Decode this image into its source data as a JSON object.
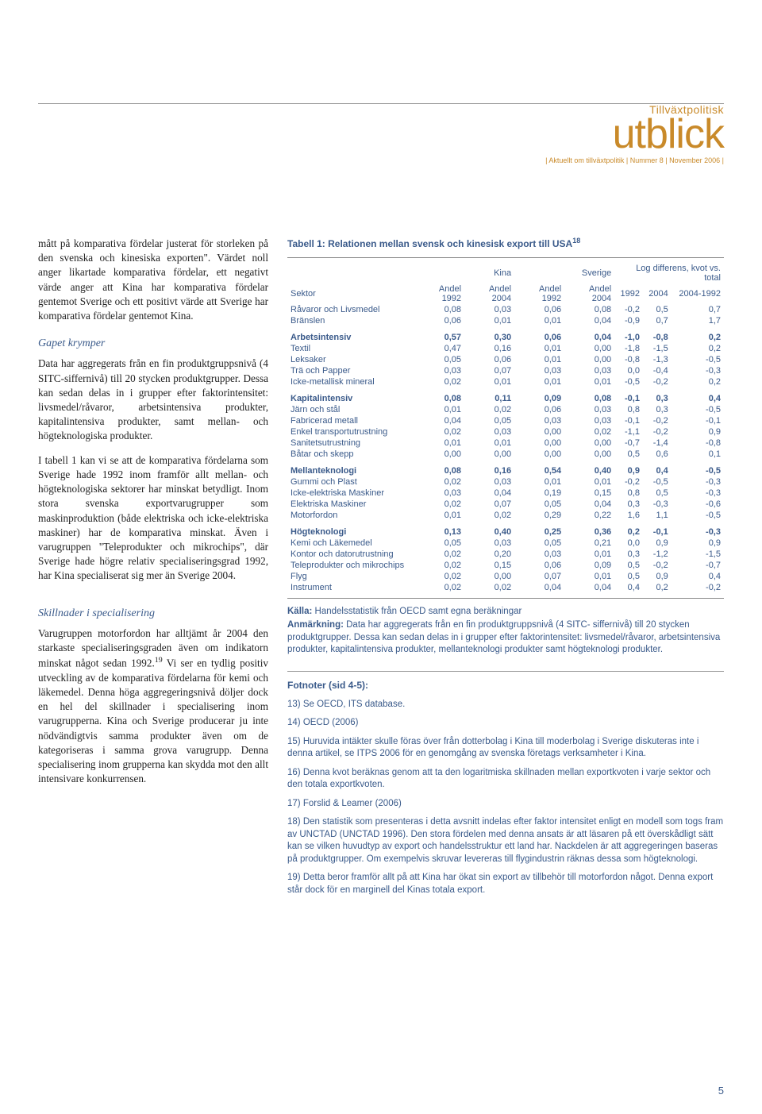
{
  "header": {
    "logo_top": "Tillväxtpolitisk",
    "logo_main": "utblick",
    "meta": "|  Aktuellt om tillväxtpolitik  |  Nummer 8  |  November 2006  |"
  },
  "left": {
    "p1": "mått på komparativa fördelar justerat för storleken på den svenska och kinesiska exporten\". Värdet noll anger likartade komparativa fördelar, ett negativt värde anger att Kina har komparativa fördelar gentemot Sverige och ett positivt värde att Sverige har komparativa fördelar gentemot Kina.",
    "h1": "Gapet krymper",
    "p2": "Data har aggregerats från en fin produktgruppsnivå (4 SITC-siffernivå) till 20 stycken produktgrupper. Dessa kan sedan delas in i grupper efter faktorintensitet: livsmedel/råvaror, arbetsintensiva produkter, kapitalintensiva produkter, samt mellan- och högteknologiska produkter.",
    "p3": "I tabell 1 kan vi se att de komparativa fördelarna som Sverige hade 1992 inom framför allt mellan- och högteknologiska sektorer har minskat betydligt. Inom stora svenska exportvarugrupper som maskinproduktion (både elektriska och icke-elektriska maskiner) har de komparativa minskat. Även i varugruppen \"Teleprodukter och mikrochips\", där Sverige hade högre relativ specialiseringsgrad 1992, har Kina specialiserat sig mer än Sverige 2004.",
    "h2": "Skillnader i specialisering",
    "p4_a": "Varugruppen motorfordon har alltjämt år 2004 den starkaste specialiseringsgraden även om indikatorn minskat något sedan 1992.",
    "p4_sup": "19",
    "p4_b": " Vi ser en tydlig positiv utveckling av de komparativa fördelarna för kemi och läkemedel. Denna höga aggregeringsnivå döljer dock en hel del skillnader i specialisering inom varugrupperna. Kina och Sverige producerar ju inte nödvändigtvis samma produkter även om de kategoriseras i samma grova varugrupp. Denna specialisering inom grupperna kan skydda mot den allt intensivare konkurrensen."
  },
  "table": {
    "title_a": "Tabell 1: Relationen mellan svensk och kinesisk export till USA",
    "title_sup": "18",
    "super_headers": [
      "",
      "Kina",
      "Sverige",
      "Log differens, kvot vs. total"
    ],
    "col_headers": [
      "Sektor",
      "Andel 1992",
      "Andel 2004",
      "Andel 1992",
      "Andel 2004",
      "1992",
      "2004",
      "2004-1992"
    ],
    "groups": [
      {
        "head": null,
        "rows": [
          [
            "Råvaror och Livsmedel",
            "0,08",
            "0,03",
            "0,06",
            "0,08",
            "-0,2",
            "0,5",
            "0,7"
          ],
          [
            "Bränslen",
            "0,06",
            "0,01",
            "0,01",
            "0,04",
            "-0,9",
            "0,7",
            "1,7"
          ]
        ]
      },
      {
        "head": [
          "Arbetsintensiv",
          "0,57",
          "0,30",
          "0,06",
          "0,04",
          "-1,0",
          "-0,8",
          "0,2"
        ],
        "rows": [
          [
            "Textil",
            "0,47",
            "0,16",
            "0,01",
            "0,00",
            "-1,8",
            "-1,5",
            "0,2"
          ],
          [
            "Leksaker",
            "0,05",
            "0,06",
            "0,01",
            "0,00",
            "-0,8",
            "-1,3",
            "-0,5"
          ],
          [
            "Trä och Papper",
            "0,03",
            "0,07",
            "0,03",
            "0,03",
            "0,0",
            "-0,4",
            "-0,3"
          ],
          [
            "Icke-metallisk mineral",
            "0,02",
            "0,01",
            "0,01",
            "0,01",
            "-0,5",
            "-0,2",
            "0,2"
          ]
        ]
      },
      {
        "head": [
          "Kapitalintensiv",
          "0,08",
          "0,11",
          "0,09",
          "0,08",
          "-0,1",
          "0,3",
          "0,4"
        ],
        "rows": [
          [
            "Järn och stål",
            "0,01",
            "0,02",
            "0,06",
            "0,03",
            "0,8",
            "0,3",
            "-0,5"
          ],
          [
            "Fabricerad metall",
            "0,04",
            "0,05",
            "0,03",
            "0,03",
            "-0,1",
            "-0,2",
            "-0,1"
          ],
          [
            "Enkel transportutrustning",
            "0,02",
            "0,03",
            "0,00",
            "0,02",
            "-1,1",
            "-0,2",
            "0,9"
          ],
          [
            "Sanitetsutrustning",
            "0,01",
            "0,01",
            "0,00",
            "0,00",
            "-0,7",
            "-1,4",
            "-0,8"
          ],
          [
            "Båtar och skepp",
            "0,00",
            "0,00",
            "0,00",
            "0,00",
            "0,5",
            "0,6",
            "0,1"
          ]
        ]
      },
      {
        "head": [
          "Mellanteknologi",
          "0,08",
          "0,16",
          "0,54",
          "0,40",
          "0,9",
          "0,4",
          "-0,5"
        ],
        "rows": [
          [
            "Gummi och Plast",
            "0,02",
            "0,03",
            "0,01",
            "0,01",
            "-0,2",
            "-0,5",
            "-0,3"
          ],
          [
            "Icke-elektriska Maskiner",
            "0,03",
            "0,04",
            "0,19",
            "0,15",
            "0,8",
            "0,5",
            "-0,3"
          ],
          [
            "Elektriska Maskiner",
            "0,02",
            "0,07",
            "0,05",
            "0,04",
            "0,3",
            "-0,3",
            "-0,6"
          ],
          [
            "Motorfordon",
            "0,01",
            "0,02",
            "0,29",
            "0,22",
            "1,6",
            "1,1",
            "-0,5"
          ]
        ]
      },
      {
        "head": [
          "Högteknologi",
          "0,13",
          "0,40",
          "0,25",
          "0,36",
          "0,2",
          "-0,1",
          "-0,3"
        ],
        "rows": [
          [
            "Kemi och Läkemedel",
            "0,05",
            "0,03",
            "0,05",
            "0,21",
            "0,0",
            "0,9",
            "0,9"
          ],
          [
            "Kontor och datorutrustning",
            "0,02",
            "0,20",
            "0,03",
            "0,01",
            "0,3",
            "-1,2",
            "-1,5"
          ],
          [
            "Teleprodukter och mikrochips",
            "0,02",
            "0,15",
            "0,06",
            "0,09",
            "0,5",
            "-0,2",
            "-0,7"
          ],
          [
            "Flyg",
            "0,02",
            "0,00",
            "0,07",
            "0,01",
            "0,5",
            "0,9",
            "0,4"
          ],
          [
            "Instrument",
            "0,02",
            "0,02",
            "0,04",
            "0,04",
            "0,4",
            "0,2",
            "-0,2"
          ]
        ]
      }
    ],
    "source_label": "Källa:",
    "source_text": " Handelsstatistik från OECD samt egna beräkningar",
    "note_label": "Anmärkning:",
    "note_text": " Data har aggregerats från en fin produktgruppsnivå (4 SITC- siffernivå) till 20 stycken produktgrupper. Dessa kan sedan delas in i grupper efter faktorintensitet: livsmedel/råvaror, arbetsintensiva produkter, kapitalintensiva produkter, mellanteknologi produkter samt högteknologi produkter."
  },
  "footnotes": {
    "title": "Fotnoter (sid 4-5):",
    "items": [
      "13) Se OECD, ITS database.",
      "14) OECD (2006)",
      "15) Huruvida intäkter skulle föras över från dotterbolag i Kina till moderbolag i Sverige diskuteras inte i denna artikel, se ITPS 2006 för en genomgång av svenska företags verksamheter i Kina.",
      "16) Denna kvot beräknas genom att ta den logaritmiska skillnaden mellan exportkvoten i varje sektor och den totala exportkvoten.",
      "17) Forslid & Leamer (2006)",
      "18) Den statistik som presenteras i detta avsnitt indelas efter faktor intensitet enligt en modell som togs fram av UNCTAD (UNCTAD 1996). Den stora fördelen med denna ansats är att läsaren på ett överskådligt sätt kan se vilken huvudtyp av export och handelsstruktur ett land har. Nackdelen är att aggregeringen baseras på produktgrupper. Om exempelvis skruvar levereras till flygindustrin räknas dessa som högteknologi.",
      "19) Detta beror framför allt på att Kina har ökat sin export av tillbehör till motorfordon något. Denna export står dock för en marginell del Kinas totala export."
    ]
  },
  "page_number": "5"
}
